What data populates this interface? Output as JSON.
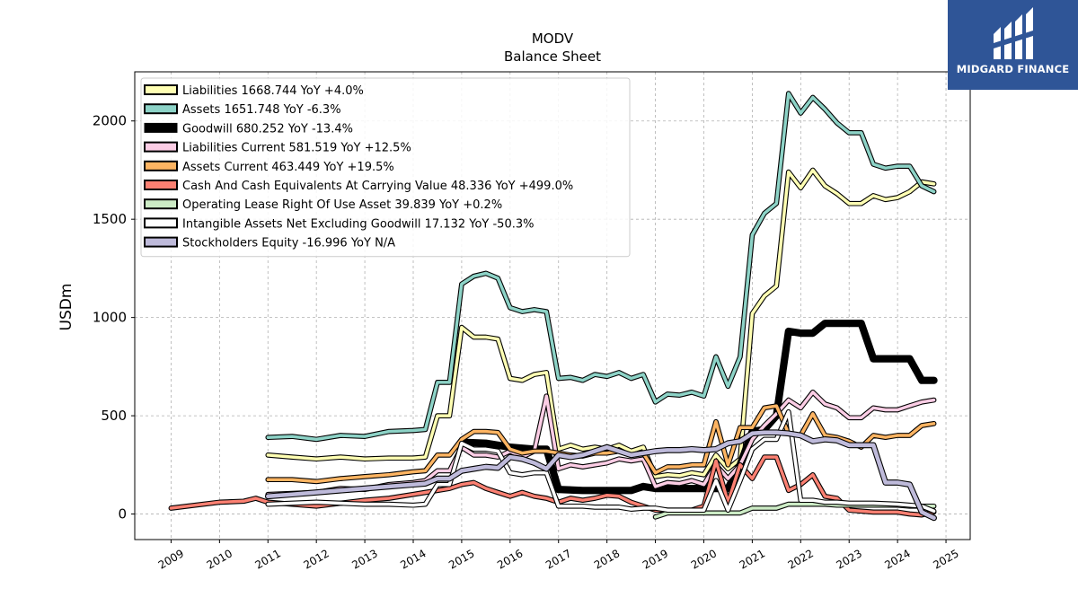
{
  "chart_data": {
    "type": "line",
    "title": "MODV",
    "subtitle": "Balance  Sheet",
    "ylabel": "USDm",
    "xlabel": "",
    "xlim": [
      2008.25,
      2025.5
    ],
    "ylim": [
      -130,
      2250
    ],
    "yticks": [
      0,
      500,
      1000,
      1500,
      2000
    ],
    "xticks": [
      "2009",
      "2010",
      "2011",
      "2012",
      "2013",
      "2014",
      "2015",
      "2016",
      "2017",
      "2018",
      "2019",
      "2020",
      "2021",
      "2022",
      "2023",
      "2024",
      "2025"
    ],
    "grid": true,
    "legend_position": "upper-left",
    "series": [
      {
        "name": "Liabilities",
        "label": "1668.744 YoY +4.0%",
        "color": "#ffffb3",
        "width": 3.5,
        "x": [
          2011.0,
          2011.5,
          2012.0,
          2012.5,
          2013.0,
          2013.5,
          2014.0,
          2014.25,
          2014.5,
          2014.75,
          2015.0,
          2015.25,
          2015.5,
          2015.75,
          2016.0,
          2016.25,
          2016.5,
          2016.75,
          2017.0,
          2017.25,
          2017.5,
          2017.75,
          2018.0,
          2018.25,
          2018.5,
          2018.75,
          2019.0,
          2019.25,
          2019.5,
          2019.75,
          2020.0,
          2020.25,
          2020.5,
          2020.75,
          2021.0,
          2021.25,
          2021.5,
          2021.75,
          2022.0,
          2022.25,
          2022.5,
          2022.75,
          2023.0,
          2023.25,
          2023.5,
          2023.75,
          2024.0,
          2024.25,
          2024.5,
          2024.75
        ],
        "y": [
          300,
          290,
          280,
          290,
          280,
          285,
          285,
          290,
          500,
          500,
          950,
          900,
          900,
          890,
          690,
          680,
          710,
          720,
          330,
          350,
          330,
          340,
          330,
          350,
          320,
          340,
          190,
          200,
          195,
          210,
          200,
          300,
          230,
          280,
          1020,
          1110,
          1160,
          1740,
          1660,
          1750,
          1670,
          1630,
          1580,
          1580,
          1620,
          1600,
          1610,
          1640,
          1690,
          1680
        ]
      },
      {
        "name": "Assets",
        "label": "1651.748 YoY -6.3%",
        "color": "#8dd3c7",
        "width": 3.5,
        "x": [
          2011.0,
          2011.5,
          2012.0,
          2012.5,
          2013.0,
          2013.5,
          2014.0,
          2014.25,
          2014.5,
          2014.75,
          2015.0,
          2015.25,
          2015.5,
          2015.75,
          2016.0,
          2016.25,
          2016.5,
          2016.75,
          2017.0,
          2017.25,
          2017.5,
          2017.75,
          2018.0,
          2018.25,
          2018.5,
          2018.75,
          2019.0,
          2019.25,
          2019.5,
          2019.75,
          2020.0,
          2020.25,
          2020.5,
          2020.75,
          2021.0,
          2021.25,
          2021.5,
          2021.75,
          2022.0,
          2022.25,
          2022.5,
          2022.75,
          2023.0,
          2023.25,
          2023.5,
          2023.75,
          2024.0,
          2024.25,
          2024.5,
          2024.75
        ],
        "y": [
          390,
          395,
          380,
          400,
          395,
          420,
          425,
          430,
          670,
          670,
          1170,
          1210,
          1225,
          1200,
          1050,
          1030,
          1040,
          1030,
          690,
          695,
          680,
          710,
          700,
          720,
          690,
          710,
          570,
          610,
          605,
          620,
          600,
          800,
          650,
          800,
          1420,
          1530,
          1580,
          2140,
          2040,
          2120,
          2060,
          1990,
          1940,
          1940,
          1780,
          1760,
          1770,
          1770,
          1670,
          1640
        ]
      },
      {
        "name": "Goodwill",
        "label": "680.252 YoY -13.4%",
        "color": "#000000",
        "width": 6,
        "x": [
          2015.0,
          2015.5,
          2016.0,
          2016.5,
          2016.75,
          2017.0,
          2017.5,
          2018.0,
          2018.25,
          2018.5,
          2018.75,
          2019.0,
          2019.5,
          2020.0,
          2020.5,
          2020.75,
          2021.0,
          2021.25,
          2021.5,
          2021.75,
          2022.0,
          2022.25,
          2022.5,
          2023.0,
          2023.25,
          2023.5,
          2024.0,
          2024.25,
          2024.5,
          2024.75
        ],
        "y": [
          365,
          360,
          340,
          330,
          330,
          125,
          120,
          120,
          120,
          120,
          140,
          130,
          130,
          130,
          130,
          250,
          420,
          430,
          500,
          930,
          920,
          920,
          970,
          970,
          970,
          790,
          790,
          790,
          680,
          680
        ]
      },
      {
        "name": "Liabilities Current",
        "label": "581.519 YoY +12.5%",
        "color": "#fccde5",
        "width": 3.5,
        "x": [
          2011.0,
          2011.5,
          2012.0,
          2012.5,
          2013.0,
          2013.5,
          2014.0,
          2014.25,
          2014.5,
          2014.75,
          2015.0,
          2015.25,
          2015.5,
          2015.75,
          2016.0,
          2016.25,
          2016.5,
          2016.75,
          2017.0,
          2017.25,
          2017.5,
          2017.75,
          2018.0,
          2018.25,
          2018.5,
          2018.75,
          2019.0,
          2019.25,
          2019.5,
          2019.75,
          2020.0,
          2020.25,
          2020.5,
          2020.75,
          2021.0,
          2021.25,
          2021.5,
          2021.75,
          2022.0,
          2022.25,
          2022.5,
          2022.75,
          2023.0,
          2023.25,
          2023.5,
          2023.75,
          2024.0,
          2024.25,
          2024.5,
          2024.75
        ],
        "y": [
          100,
          105,
          110,
          130,
          125,
          150,
          160,
          170,
          220,
          220,
          340,
          300,
          300,
          290,
          320,
          290,
          320,
          600,
          230,
          250,
          240,
          250,
          260,
          280,
          270,
          280,
          140,
          160,
          155,
          170,
          150,
          250,
          180,
          250,
          380,
          450,
          510,
          580,
          540,
          620,
          560,
          540,
          490,
          490,
          540,
          530,
          530,
          550,
          570,
          580
        ]
      },
      {
        "name": "Assets Current",
        "label": "463.449 YoY +19.5%",
        "color": "#fdb462",
        "width": 3.5,
        "x": [
          2011.0,
          2011.5,
          2012.0,
          2012.5,
          2013.0,
          2013.5,
          2014.0,
          2014.25,
          2014.5,
          2014.75,
          2015.0,
          2015.25,
          2015.5,
          2015.75,
          2016.0,
          2016.25,
          2016.5,
          2016.75,
          2017.0,
          2017.25,
          2017.5,
          2017.75,
          2018.0,
          2018.25,
          2018.5,
          2018.75,
          2019.0,
          2019.25,
          2019.5,
          2019.75,
          2020.0,
          2020.25,
          2020.5,
          2020.75,
          2021.0,
          2021.25,
          2021.5,
          2021.75,
          2022.0,
          2022.25,
          2022.5,
          2022.75,
          2023.0,
          2023.25,
          2023.5,
          2023.75,
          2024.0,
          2024.25,
          2024.5,
          2024.75
        ],
        "y": [
          175,
          175,
          165,
          180,
          190,
          200,
          215,
          220,
          300,
          300,
          380,
          420,
          420,
          415,
          330,
          310,
          320,
          320,
          310,
          300,
          295,
          310,
          310,
          320,
          300,
          310,
          210,
          240,
          240,
          250,
          250,
          470,
          250,
          440,
          440,
          540,
          550,
          410,
          400,
          510,
          400,
          390,
          370,
          340,
          400,
          390,
          400,
          400,
          450,
          460
        ]
      },
      {
        "name": "Cash And Cash Equivalents At Carrying Value",
        "label": "48.336 YoY +499.0%",
        "color": "#fb8072",
        "width": 3.5,
        "x": [
          2009.0,
          2009.5,
          2010.0,
          2010.5,
          2010.75,
          2011.0,
          2011.5,
          2012.0,
          2012.5,
          2013.0,
          2013.5,
          2014.0,
          2014.25,
          2014.5,
          2014.75,
          2015.0,
          2015.25,
          2015.5,
          2015.75,
          2016.0,
          2016.25,
          2016.5,
          2016.75,
          2017.0,
          2017.25,
          2017.5,
          2017.75,
          2018.0,
          2018.25,
          2018.5,
          2018.75,
          2019.0,
          2019.25,
          2019.5,
          2019.75,
          2020.0,
          2020.25,
          2020.5,
          2020.75,
          2021.0,
          2021.25,
          2021.5,
          2021.75,
          2022.0,
          2022.25,
          2022.5,
          2022.75,
          2023.0,
          2023.5,
          2024.0,
          2024.25,
          2024.5,
          2024.75
        ],
        "y": [
          30,
          45,
          60,
          65,
          80,
          60,
          50,
          40,
          55,
          70,
          80,
          100,
          110,
          120,
          130,
          150,
          160,
          130,
          110,
          90,
          110,
          90,
          80,
          60,
          80,
          70,
          80,
          95,
          90,
          60,
          40,
          20,
          20,
          20,
          20,
          40,
          270,
          60,
          250,
          180,
          290,
          290,
          120,
          150,
          200,
          90,
          80,
          20,
          10,
          10,
          0,
          -5,
          10
        ]
      },
      {
        "name": "Operating Lease Right Of Use Asset",
        "label": "39.839 YoY +0.2%",
        "color": "#ccebc5",
        "width": 3.5,
        "x": [
          2019.0,
          2019.25,
          2019.5,
          2019.75,
          2020.0,
          2020.25,
          2020.5,
          2020.75,
          2021.0,
          2021.25,
          2021.5,
          2021.75,
          2022.0,
          2022.25,
          2022.5,
          2022.75,
          2023.0,
          2023.5,
          2024.0,
          2024.25,
          2024.5,
          2024.75
        ],
        "y": [
          -15,
          5,
          5,
          5,
          5,
          5,
          5,
          5,
          30,
          30,
          30,
          50,
          50,
          50,
          50,
          45,
          45,
          45,
          45,
          40,
          40,
          40
        ]
      },
      {
        "name": "Intangible Assets Net Excluding Goodwill",
        "label": "17.132 YoY -50.3%",
        "color": "#ffffff",
        "width": 3.5,
        "x": [
          2011.0,
          2011.5,
          2012.0,
          2012.5,
          2013.0,
          2013.5,
          2014.0,
          2014.25,
          2014.5,
          2014.75,
          2015.0,
          2015.25,
          2015.5,
          2015.75,
          2016.0,
          2016.25,
          2016.5,
          2016.75,
          2017.0,
          2017.25,
          2017.5,
          2017.75,
          2018.0,
          2018.25,
          2018.5,
          2018.75,
          2019.0,
          2019.25,
          2019.5,
          2019.75,
          2020.0,
          2020.25,
          2020.5,
          2020.75,
          2021.0,
          2021.25,
          2021.5,
          2021.75,
          2022.0,
          2022.25,
          2022.5,
          2022.75,
          2023.0,
          2023.5,
          2024.0,
          2024.25,
          2024.5,
          2024.75
        ],
        "y": [
          50,
          55,
          60,
          55,
          50,
          50,
          45,
          50,
          150,
          150,
          360,
          330,
          330,
          320,
          210,
          200,
          210,
          210,
          40,
          40,
          40,
          35,
          35,
          35,
          25,
          30,
          30,
          20,
          20,
          20,
          20,
          170,
          20,
          170,
          330,
          380,
          380,
          520,
          70,
          70,
          60,
          60,
          55,
          55,
          50,
          45,
          40,
          15
        ]
      },
      {
        "name": "Stockholders Equity",
        "label": "-16.996 YoY N/A",
        "color": "#bebada",
        "width": 4.5,
        "x": [
          2011.0,
          2011.5,
          2012.0,
          2012.5,
          2013.0,
          2013.5,
          2014.0,
          2014.25,
          2014.5,
          2014.75,
          2015.0,
          2015.25,
          2015.5,
          2015.75,
          2016.0,
          2016.25,
          2016.5,
          2016.75,
          2017.0,
          2017.25,
          2017.5,
          2017.75,
          2018.0,
          2018.25,
          2018.5,
          2018.75,
          2019.0,
          2019.25,
          2019.5,
          2019.75,
          2020.0,
          2020.25,
          2020.5,
          2020.75,
          2021.0,
          2021.25,
          2021.5,
          2021.75,
          2022.0,
          2022.25,
          2022.5,
          2022.75,
          2023.0,
          2023.25,
          2023.5,
          2023.75,
          2024.0,
          2024.25,
          2024.5,
          2024.75
        ],
        "y": [
          90,
          100,
          110,
          120,
          130,
          140,
          150,
          155,
          180,
          180,
          220,
          230,
          240,
          235,
          290,
          280,
          260,
          230,
          300,
          290,
          300,
          320,
          340,
          320,
          300,
          310,
          320,
          325,
          325,
          330,
          325,
          330,
          360,
          370,
          410,
          415,
          415,
          410,
          400,
          370,
          380,
          375,
          350,
          350,
          350,
          160,
          160,
          150,
          10,
          -20
        ]
      }
    ]
  },
  "brand": {
    "name": "MIDGARD FINANCE",
    "bg_color": "#2f5597"
  }
}
